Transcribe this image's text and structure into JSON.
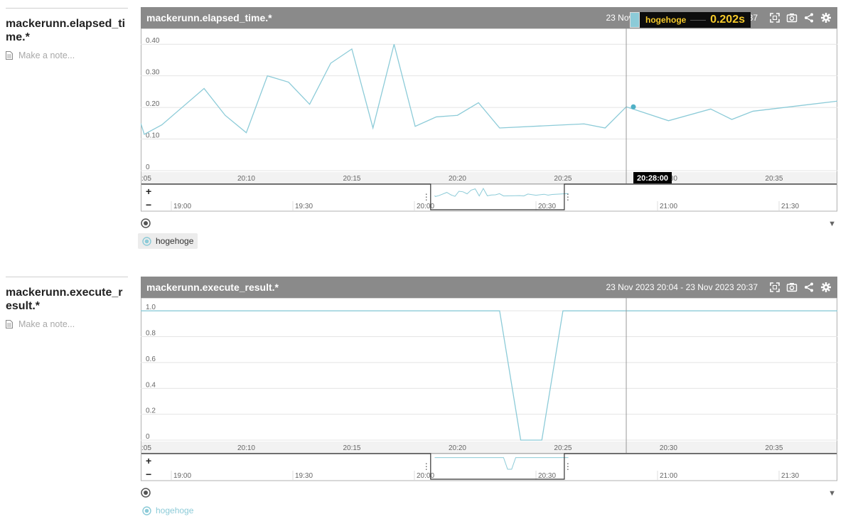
{
  "colors": {
    "series": "#8ccbd8",
    "header": "#8a8a8a",
    "accent": "#f5c92a"
  },
  "note_placeholder": "Make a note...",
  "chart_data": [
    {
      "type": "line",
      "title": "mackerunn.elapsed_time.*",
      "range_text": "23 Nov 2023 20:04 - 23 Nov 2023 20:37",
      "ylim": [
        0,
        0.45
      ],
      "yticks": [
        "0",
        "0.10",
        "0.20",
        "0.30",
        "0.40"
      ],
      "ytick_values": [
        0,
        0.1,
        0.2,
        0.3,
        0.4
      ],
      "xlim": [
        "20:05",
        "20:38"
      ],
      "xticks": [
        ":05",
        "20:10",
        "20:15",
        "20:20",
        "20:25",
        "20:30",
        "20:35"
      ],
      "crosshair_time": "20:28:00",
      "tooltip": {
        "series": "hogehoge",
        "value": "0.202s"
      },
      "series": [
        {
          "name": "hogehoge",
          "x": [
            "20:05",
            "20:05:10",
            "20:06",
            "20:08",
            "20:09",
            "20:10",
            "20:11",
            "20:12",
            "20:13",
            "20:14",
            "20:15",
            "20:16",
            "20:17",
            "20:18",
            "20:19",
            "20:20",
            "20:21",
            "20:22",
            "20:26",
            "20:27",
            "20:28",
            "20:30",
            "20:32",
            "20:33",
            "20:34",
            "20:38"
          ],
          "values": [
            0.15,
            0.115,
            0.145,
            0.26,
            0.175,
            0.12,
            0.3,
            0.28,
            0.21,
            0.34,
            0.385,
            0.135,
            0.4,
            0.14,
            0.17,
            0.175,
            0.215,
            0.135,
            0.148,
            0.135,
            0.202,
            0.158,
            0.195,
            0.162,
            0.188,
            0.22
          ]
        }
      ],
      "navigator": {
        "ticks": [
          "19:00",
          "19:30",
          "20:00",
          "20:30",
          "21:00",
          "21:30"
        ]
      }
    },
    {
      "type": "line",
      "title": "mackerunn.execute_result.*",
      "range_text": "23 Nov 2023 20:04 - 23 Nov 2023 20:37",
      "ylim": [
        0,
        1.1
      ],
      "yticks": [
        "0",
        "0.2",
        "0.4",
        "0.6",
        "0.8",
        "1.0"
      ],
      "ytick_values": [
        0,
        0.2,
        0.4,
        0.6,
        0.8,
        1.0
      ],
      "xlim": [
        "20:05",
        "20:38"
      ],
      "xticks": [
        ":05",
        "20:10",
        "20:15",
        "20:20",
        "20:25",
        "20:30",
        "20:35"
      ],
      "series": [
        {
          "name": "hogehoge",
          "x": [
            "20:05",
            "20:22",
            "20:23",
            "20:24",
            "20:25",
            "20:38"
          ],
          "values": [
            1.0,
            1.0,
            0,
            0,
            1.0,
            1.0
          ]
        }
      ],
      "navigator": {
        "ticks": [
          "19:00",
          "19:30",
          "20:00",
          "20:30",
          "21:00",
          "21:30"
        ]
      }
    }
  ]
}
